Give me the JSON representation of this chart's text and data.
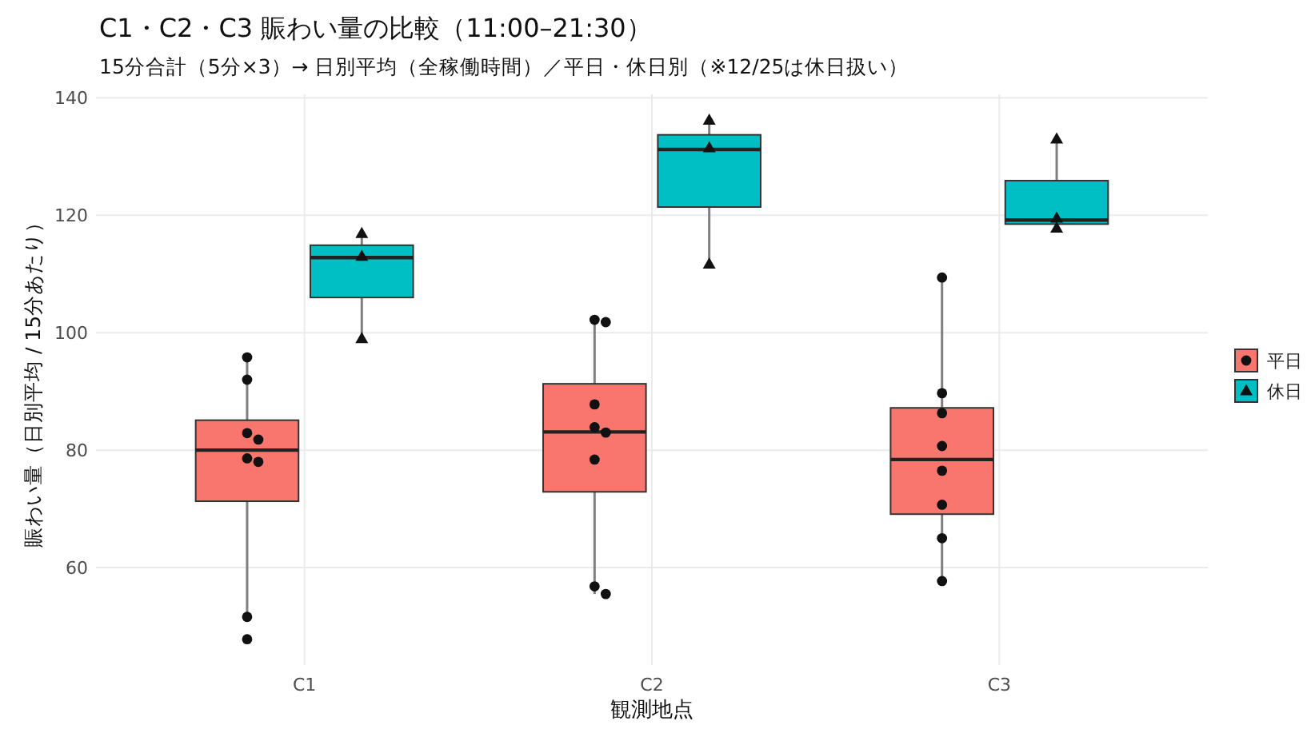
{
  "chart_data": {
    "type": "box",
    "title": "C1・C2・C3 賑わい量の比較（11:00–21:30）",
    "subtitle": "15分合計（5分×3）→ 日別平均（全稼働時間）／平日・休日別（※12/25は休日扱い）",
    "xlabel": "観測地点",
    "ylabel": "賑わい量（日別平均 / 15分あたり）",
    "categories": [
      "C1",
      "C2",
      "C3"
    ],
    "ylim": [
      43.4,
      140.6
    ],
    "yticks": [
      60,
      80,
      100,
      120,
      140
    ],
    "grid": true,
    "legend": "right",
    "series": [
      {
        "name": "平日",
        "color": "#F8766D",
        "boxes": [
          {
            "low": 51.6,
            "q1": 71.3,
            "median": 80,
            "q3": 85.1,
            "high": 95.8
          },
          {
            "low": 55.5,
            "q1": 72.9,
            "median": 83.1,
            "q3": 91.3,
            "high": 102.2
          },
          {
            "low": 57.7,
            "q1": 69.1,
            "median": 78.4,
            "q3": 87.2,
            "high": 109.4
          }
        ]
      },
      {
        "name": "休日",
        "color": "#00BFC4",
        "boxes": [
          {
            "low": 99,
            "q1": 106,
            "median": 112.8,
            "q3": 114.9,
            "high": 116.9
          },
          {
            "low": 111.7,
            "q1": 121.4,
            "median": 131.2,
            "q3": 133.7,
            "high": 136.2
          },
          {
            "low": 117.8,
            "q1": 118.5,
            "median": 119.2,
            "q3": 125.9,
            "high": 133
          }
        ]
      },
      {
        "type": "scatter",
        "marker": "circle",
        "color": "#111111",
        "x": [
          "C1",
          "C1",
          "C1",
          "C1",
          "C1",
          "C1",
          "C1",
          "C1",
          "C2",
          "C2",
          "C2",
          "C2",
          "C2",
          "C2",
          "C2",
          "C2",
          "C3",
          "C3",
          "C3",
          "C3",
          "C3",
          "C3",
          "C3",
          "C3"
        ],
        "values": [
          95.8,
          92,
          82.9,
          81.8,
          78.6,
          78,
          51.6,
          47.8,
          102.2,
          101.8,
          87.8,
          83.9,
          83,
          78.4,
          56.8,
          55.5,
          109.4,
          89.7,
          86.3,
          80.7,
          76.5,
          70.7,
          65,
          57.7
        ]
      },
      {
        "type": "scatter",
        "marker": "triangle",
        "color": "#111111",
        "x": [
          "C1",
          "C1",
          "C1",
          "C2",
          "C2",
          "C2",
          "C3",
          "C3",
          "C3"
        ],
        "values": [
          116.9,
          113,
          99,
          136.2,
          131.5,
          111.7,
          133,
          119.5,
          117.8
        ]
      }
    ]
  }
}
